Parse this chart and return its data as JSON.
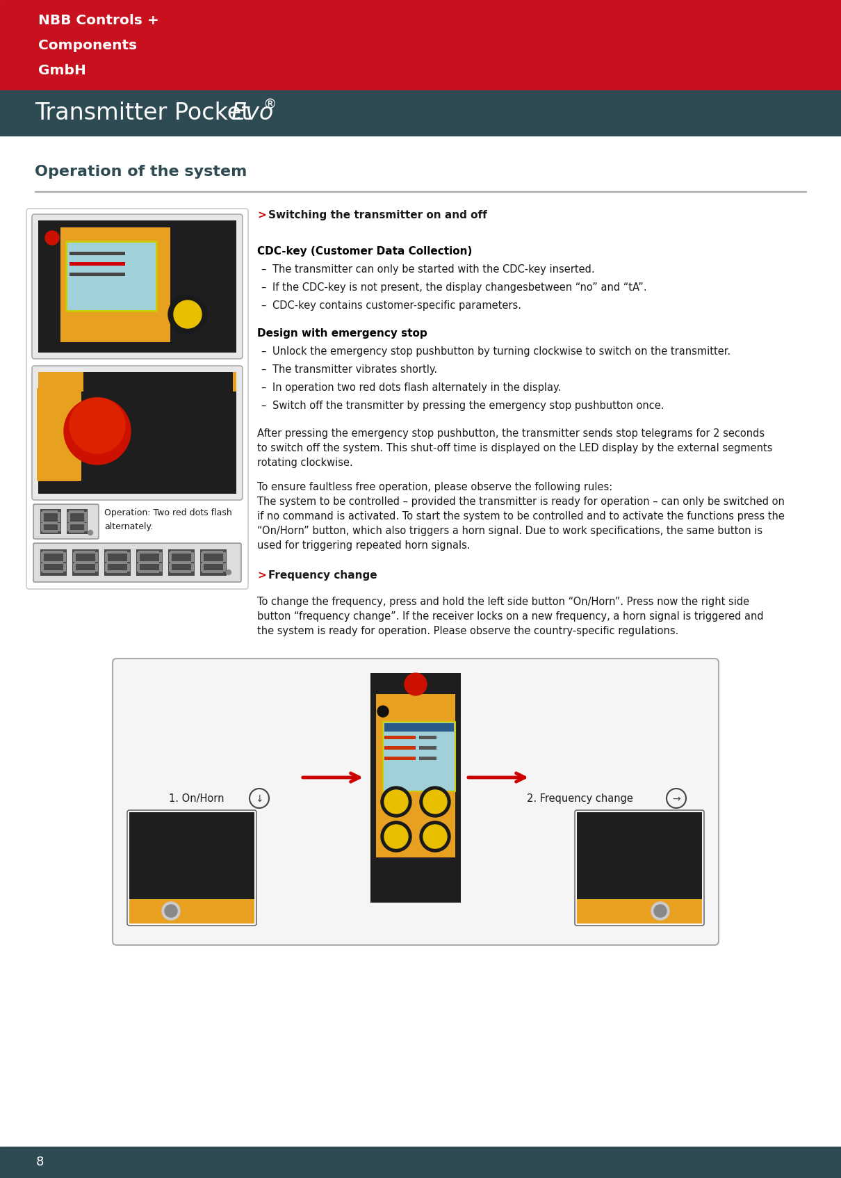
{
  "bg_color": "#ffffff",
  "header_red": "#c8101e",
  "header_teal": "#2e4a52",
  "company_lines": [
    "NBB Controls +",
    "Components",
    "GmbH"
  ],
  "section_title": "Operation of the system",
  "section_title_color": "#2e4a52",
  "arrow_red": "#cc0000",
  "subsection1_text": "Switching the transmitter on and off",
  "cdc_title": "CDC-key (Customer Data Collection)",
  "cdc_bullets": [
    "The transmitter can only be started with the CDC-key inserted.",
    "If the CDC-key is not present, the display changesbetween “no” and “tA”.",
    "CDC-key contains customer-specific parameters."
  ],
  "emergency_title": "Design with emergency stop",
  "emergency_bullets": [
    "Unlock the emergency stop pushbutton by turning clockwise to switch on the transmitter.",
    "The transmitter vibrates shortly.",
    "In operation two red dots flash alternately in the display.",
    "Switch off the transmitter by pressing the emergency stop pushbutton once."
  ],
  "para1_lines": [
    "After pressing the emergency stop pushbutton, the transmitter sends stop telegrams for 2 seconds",
    "to switch off the system. This shut-off time is displayed on the LED display by the external segments",
    "rotating clockwise."
  ],
  "para2_line0": "To ensure faultless free operation, please observe the following rules:",
  "para2_lines": [
    "The system to be controlled – provided the transmitter is ready for operation – can only be switched on",
    "if no command is activated. To start the system to be controlled and to activate the functions press the",
    "“On/Horn” button, which also triggers a horn signal. Due to work specifications, the same button is",
    "used for triggering repeated horn signals."
  ],
  "subsection2_text": "Frequency change",
  "freq_lines": [
    "To change the frequency, press and hold the left side button “On/Horn”. Press now the right side",
    "button “frequency change”. If the receiver locks on a new frequency, a horn signal is triggered and",
    "the system is ready for operation. Please observe the country-specific regulations."
  ],
  "op_caption_line1": "Operation: Two red dots flash",
  "op_caption_line2": "alternately.",
  "label1": "1. On/Horn",
  "label2": "2. Frequency change",
  "page_num": "8",
  "footer_color": "#2e4a52",
  "text_color": "#1a1a1a",
  "rule_color": "#aaaaaa",
  "left_box_edge": "#cccccc",
  "img_border": "#aaaaaa"
}
